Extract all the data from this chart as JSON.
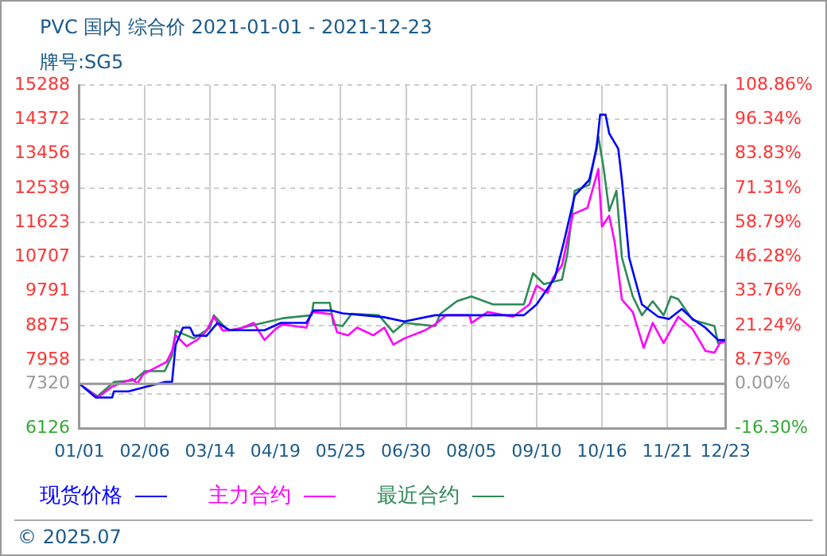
{
  "chart_data": {
    "type": "line",
    "title": "PVC 国内 综合价 2021-01-01 - 2021-12-23",
    "subtitle": "牌号:SG5",
    "xlim": [
      "2021-01-01",
      "2021-12-23"
    ],
    "xticks": [
      {
        "value": "2021-01-01",
        "label": "01/01"
      },
      {
        "value": "2021-02-06",
        "label": "02/06"
      },
      {
        "value": "2021-03-14",
        "label": "03/14"
      },
      {
        "value": "2021-04-19",
        "label": "04/19"
      },
      {
        "value": "2021-05-25",
        "label": "05/25"
      },
      {
        "value": "2021-06-30",
        "label": "06/30"
      },
      {
        "value": "2021-08-05",
        "label": "08/05"
      },
      {
        "value": "2021-09-10",
        "label": "09/10"
      },
      {
        "value": "2021-10-16",
        "label": "10/16"
      },
      {
        "value": "2021-11-21",
        "label": "11/21"
      },
      {
        "value": "2021-12-23",
        "label": "12/23"
      }
    ],
    "ylim": [
      6126,
      15288
    ],
    "yticks": [
      6126,
      {
        "value": 7042,
        "label": null
      },
      7320,
      7958,
      8875,
      9791,
      10707,
      11623,
      12539,
      13456,
      14372,
      15288
    ],
    "y2lim": [
      -16.3,
      108.86
    ],
    "y2ticks": [
      {
        "value": -16.3,
        "label": "-16.30%"
      },
      {
        "value": 0,
        "label": "0.00%"
      },
      {
        "value": 8.73,
        "label": "8.73%"
      },
      {
        "value": 21.24,
        "label": "21.24%"
      },
      {
        "value": 33.76,
        "label": "33.76%"
      },
      {
        "value": 46.28,
        "label": "46.28%"
      },
      {
        "value": 58.79,
        "label": "58.79%"
      },
      {
        "value": 71.31,
        "label": "71.31%"
      },
      {
        "value": 83.83,
        "label": "83.83%"
      },
      {
        "value": 96.34,
        "label": "96.34%"
      },
      {
        "value": 108.86,
        "label": "108.86%"
      }
    ],
    "ref_lines": [
      {
        "axis": "y",
        "value": 7320,
        "color": "#999999"
      }
    ],
    "grid": true,
    "legend": "bottom",
    "annotations": [
      "© 2025.07"
    ],
    "series": [
      {
        "name": "现货价格",
        "color": "#0000ff",
        "x": [
          "2021-01-01",
          "2021-01-10",
          "2021-01-19",
          "2021-01-20",
          "2021-01-28",
          "2021-02-07",
          "2021-02-17",
          "2021-02-21",
          "2021-02-23",
          "2021-02-27",
          "2021-03-03",
          "2021-03-05",
          "2021-03-12",
          "2021-03-18",
          "2021-03-25",
          "2021-04-13",
          "2021-04-22",
          "2021-05-06",
          "2021-05-10",
          "2021-05-20",
          "2021-05-26",
          "2021-06-18",
          "2021-06-29",
          "2021-07-16",
          "2021-09-03",
          "2021-09-10",
          "2021-09-20",
          "2021-09-25",
          "2021-10-01",
          "2021-10-09",
          "2021-10-13",
          "2021-10-15",
          "2021-10-18",
          "2021-10-20",
          "2021-10-25",
          "2021-10-27",
          "2021-10-31",
          "2021-11-03",
          "2021-11-07",
          "2021-11-16",
          "2021-11-22",
          "2021-11-29",
          "2021-12-05",
          "2021-12-12",
          "2021-12-19",
          "2021-12-23"
        ],
        "values": [
          7320,
          6955,
          6955,
          7120,
          7120,
          7245,
          7370,
          7370,
          8364,
          8820,
          8820,
          8614,
          8600,
          8945,
          8750,
          8750,
          8945,
          8945,
          9277,
          9277,
          9200,
          9097,
          8985,
          9150,
          9150,
          9440,
          10147,
          11100,
          12345,
          12760,
          13590,
          14500,
          14500,
          14000,
          13590,
          12760,
          10686,
          10147,
          9440,
          9110,
          9050,
          9318,
          9050,
          8820,
          8488,
          8488
        ]
      },
      {
        "name": "主力合约",
        "color": "#ff00ff",
        "x": [
          "2021-01-03",
          "2021-01-11",
          "2021-01-19",
          "2021-01-30",
          "2021-02-02",
          "2021-02-05",
          "2021-02-18",
          "2021-02-21",
          "2021-02-23",
          "2021-03-01",
          "2021-03-07",
          "2021-03-12",
          "2021-03-16",
          "2021-03-21",
          "2021-03-30",
          "2021-04-07",
          "2021-04-13",
          "2021-04-19",
          "2021-04-23",
          "2021-05-06",
          "2021-05-09",
          "2021-05-20",
          "2021-05-23",
          "2021-05-29",
          "2021-06-03",
          "2021-06-12",
          "2021-06-18",
          "2021-06-23",
          "2021-06-29",
          "2021-07-10",
          "2021-07-16",
          "2021-07-22",
          "2021-08-04",
          "2021-08-05",
          "2021-08-14",
          "2021-08-28",
          "2021-09-06",
          "2021-09-10",
          "2021-09-16",
          "2021-09-19",
          "2021-09-24",
          "2021-09-30",
          "2021-10-08",
          "2021-10-14",
          "2021-10-16",
          "2021-10-20",
          "2021-10-23",
          "2021-10-27",
          "2021-11-02",
          "2021-11-08",
          "2021-11-13",
          "2021-11-19",
          "2021-11-27",
          "2021-12-05",
          "2021-12-12",
          "2021-12-17",
          "2021-12-20",
          "2021-12-23"
        ],
        "values": [
          7245,
          6955,
          7245,
          7450,
          7330,
          7575,
          7906,
          8200,
          8614,
          8323,
          8500,
          8738,
          9110,
          8738,
          8780,
          8945,
          8488,
          8780,
          8905,
          8820,
          9235,
          9180,
          8696,
          8614,
          8820,
          8614,
          8820,
          8364,
          8530,
          8738,
          8905,
          9150,
          9150,
          8945,
          9235,
          9110,
          9440,
          9940,
          9750,
          10147,
          10480,
          11847,
          12013,
          13050,
          11515,
          11805,
          11100,
          9566,
          9235,
          8280,
          8945,
          8406,
          9110,
          8780,
          8200,
          8150,
          8406,
          8450
        ]
      },
      {
        "name": "最近合约",
        "color": "#2e8b57",
        "x": [
          "2021-01-03",
          "2021-01-11",
          "2021-01-20",
          "2021-01-31",
          "2021-02-06",
          "2021-02-17",
          "2021-02-21",
          "2021-02-23",
          "2021-03-05",
          "2021-03-14",
          "2021-03-16",
          "2021-03-24",
          "2021-04-01",
          "2021-04-23",
          "2021-05-09",
          "2021-05-10",
          "2021-05-19",
          "2021-05-21",
          "2021-05-26",
          "2021-05-31",
          "2021-06-15",
          "2021-06-23",
          "2021-06-29",
          "2021-07-16",
          "2021-07-19",
          "2021-07-28",
          "2021-08-05",
          "2021-08-17",
          "2021-09-03",
          "2021-09-08",
          "2021-09-14",
          "2021-09-24",
          "2021-09-27",
          "2021-10-01",
          "2021-10-09",
          "2021-10-14",
          "2021-10-17",
          "2021-10-20",
          "2021-10-24",
          "2021-10-27",
          "2021-11-02",
          "2021-11-07",
          "2021-11-13",
          "2021-11-19",
          "2021-11-23",
          "2021-11-27",
          "2021-12-05",
          "2021-12-17",
          "2021-12-19",
          "2021-12-23"
        ],
        "values": [
          7245,
          6990,
          7370,
          7410,
          7658,
          7658,
          8075,
          8738,
          8530,
          8820,
          9150,
          8738,
          8820,
          9070,
          9150,
          9480,
          9480,
          8905,
          8860,
          9190,
          9150,
          8696,
          8945,
          8860,
          9190,
          9523,
          9650,
          9440,
          9440,
          10270,
          9980,
          10100,
          10810,
          12470,
          12630,
          13920,
          13050,
          11930,
          12470,
          10686,
          9650,
          9150,
          9523,
          9150,
          9650,
          9580,
          9028,
          8860,
          8406,
          8490
        ]
      }
    ]
  }
}
